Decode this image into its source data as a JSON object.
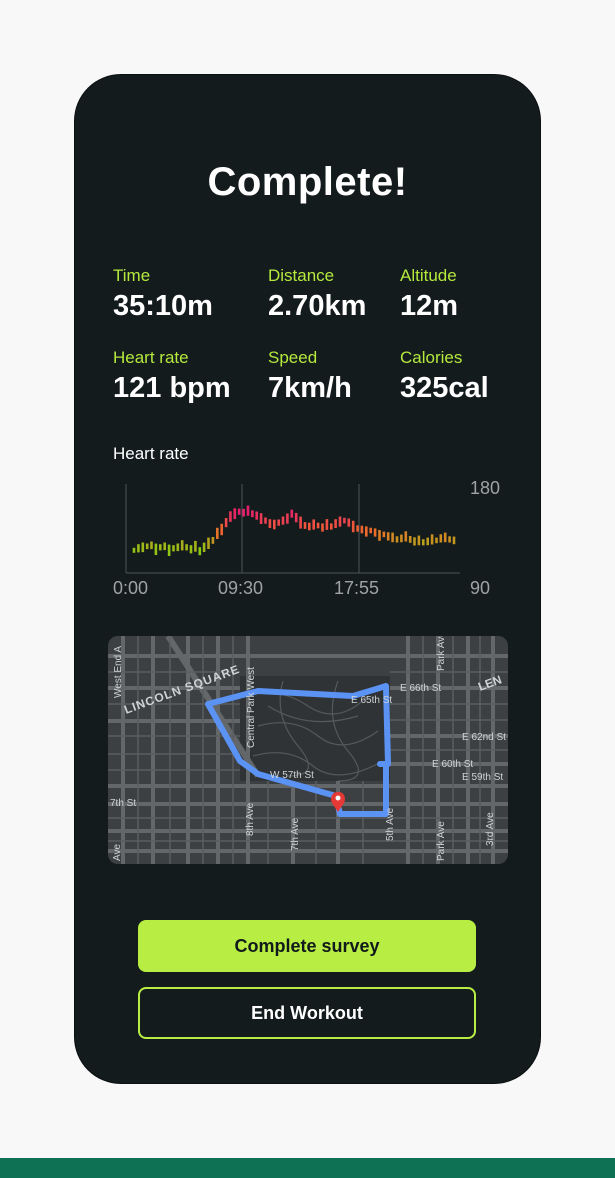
{
  "title": "Complete!",
  "stats": [
    {
      "label": "Time",
      "value": "35:10m"
    },
    {
      "label": "Distance",
      "value": "2.70km"
    },
    {
      "label": "Altitude",
      "value": "12m"
    },
    {
      "label": "Heart rate",
      "value": "121 bpm"
    },
    {
      "label": "Speed",
      "value": "7km/h"
    },
    {
      "label": "Calories",
      "value": "325cal"
    }
  ],
  "heart_rate_chart": {
    "title": "Heart rate",
    "x_ticks": [
      "0:00",
      "09:30",
      "17:55"
    ],
    "y_max": "180",
    "y_min": "90",
    "colors": {
      "low": "#8acb12",
      "mid": "#f06a2a",
      "high": "#e81f6e"
    }
  },
  "chart_data": {
    "type": "bar",
    "title": "Heart rate",
    "xlabel": "",
    "ylabel": "",
    "ylim": [
      90,
      180
    ],
    "x_ticks": [
      "0:00",
      "09:30",
      "17:55"
    ],
    "values": [
      113,
      115,
      116,
      117,
      118,
      114,
      116,
      117,
      113,
      115,
      116,
      118,
      116,
      114,
      117,
      112,
      116,
      120,
      123,
      130,
      134,
      141,
      147,
      150,
      152,
      151,
      153,
      150,
      148,
      145,
      143,
      140,
      139,
      141,
      143,
      145,
      150,
      146,
      141,
      138,
      137,
      139,
      138,
      136,
      139,
      137,
      140,
      142,
      143,
      141,
      137,
      135,
      134,
      132,
      133,
      131,
      128,
      129,
      127,
      126,
      124,
      125,
      127,
      124,
      122,
      123,
      121,
      122,
      124,
      123,
      125,
      126,
      124,
      123
    ]
  },
  "map": {
    "labels": {
      "west_end": "West End A",
      "lincoln_square": "LINCOLN SQUARE",
      "central_park_west": "Central Park West",
      "e66": "E 66th St",
      "e65": "E 65th St",
      "e62": "E 62nd St",
      "e60": "E 60th St",
      "e59": "E 59th St",
      "w57": "W 57th St",
      "seventh_st": "7th St",
      "eighth_ave": "8th Ave",
      "seventh_ave": "7th Ave",
      "fifth_ave": "5th Ave",
      "park_ave": "Park Ave",
      "third_ave": "3rd Ave",
      "lenox": "LEN",
      "ave": "Ave"
    },
    "route_color": "#5b93f5",
    "pin_color": "#e53935"
  },
  "buttons": {
    "primary": "Complete survey",
    "secondary": "End Workout"
  }
}
